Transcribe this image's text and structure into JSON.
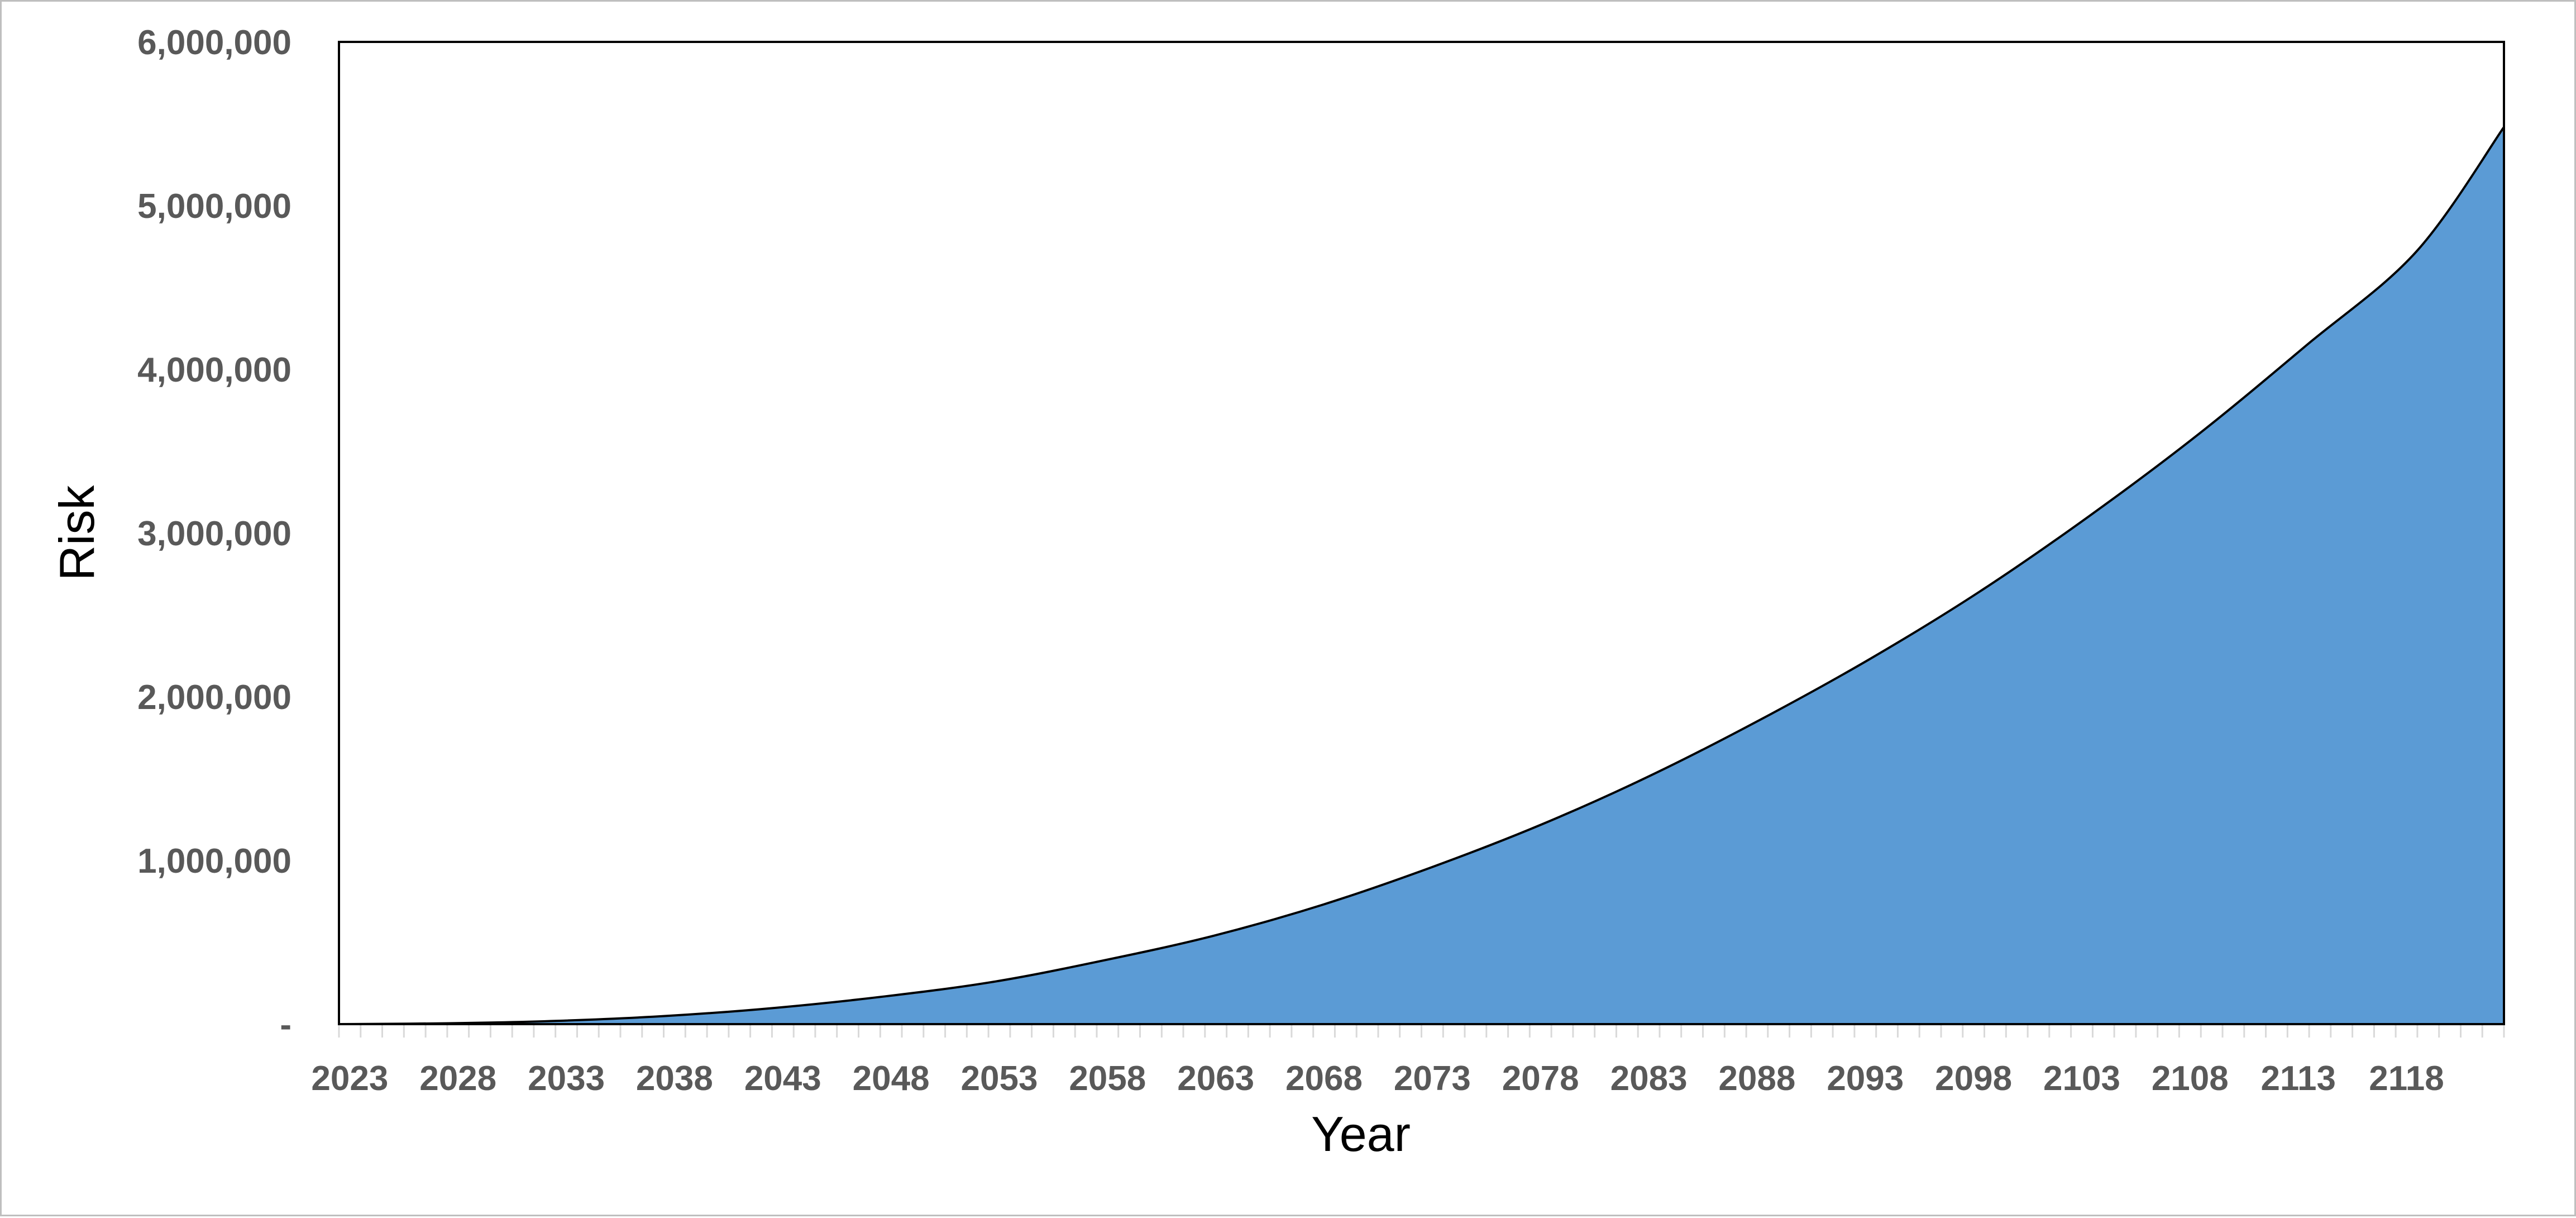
{
  "chart_data": {
    "type": "area",
    "title": "",
    "xlabel": "Year",
    "ylabel": "Risk",
    "x_start": 2023,
    "x_end": 2122,
    "xlim": [
      2023,
      2122
    ],
    "ylim": [
      0,
      6000000
    ],
    "y_ticks": [
      0,
      1000000,
      2000000,
      3000000,
      4000000,
      5000000,
      6000000
    ],
    "y_tick_labels": [
      "-",
      "1,000,000",
      "2,000,000",
      "3,000,000",
      "4,000,000",
      "5,000,000",
      "6,000,000"
    ],
    "x_tick_labels": [
      "2023",
      "2028",
      "2033",
      "2038",
      "2043",
      "2048",
      "2053",
      "2058",
      "2063",
      "2068",
      "2073",
      "2078",
      "2083",
      "2088",
      "2093",
      "2098",
      "2103",
      "2108",
      "2113",
      "2118"
    ],
    "grid": false,
    "legend": "none",
    "series": [
      {
        "x": [
          2023,
          2028,
          2033,
          2038,
          2043,
          2048,
          2053,
          2058,
          2063,
          2068,
          2073,
          2078,
          2083,
          2088,
          2093,
          2098,
          2103,
          2108,
          2113,
          2118,
          2122
        ],
        "values": [
          0,
          5000,
          20000,
          50000,
          100000,
          170000,
          260000,
          390000,
          540000,
          730000,
          960000,
          1220000,
          1520000,
          1860000,
          2230000,
          2640000,
          3100000,
          3600000,
          4150000,
          4720000,
          5480000
        ]
      }
    ],
    "colors": {
      "fill": "#5b9bd5",
      "line": "#000000",
      "axis_text": "#595959",
      "plot_border": "#000000",
      "frame_border": "#bfbfbf"
    }
  }
}
